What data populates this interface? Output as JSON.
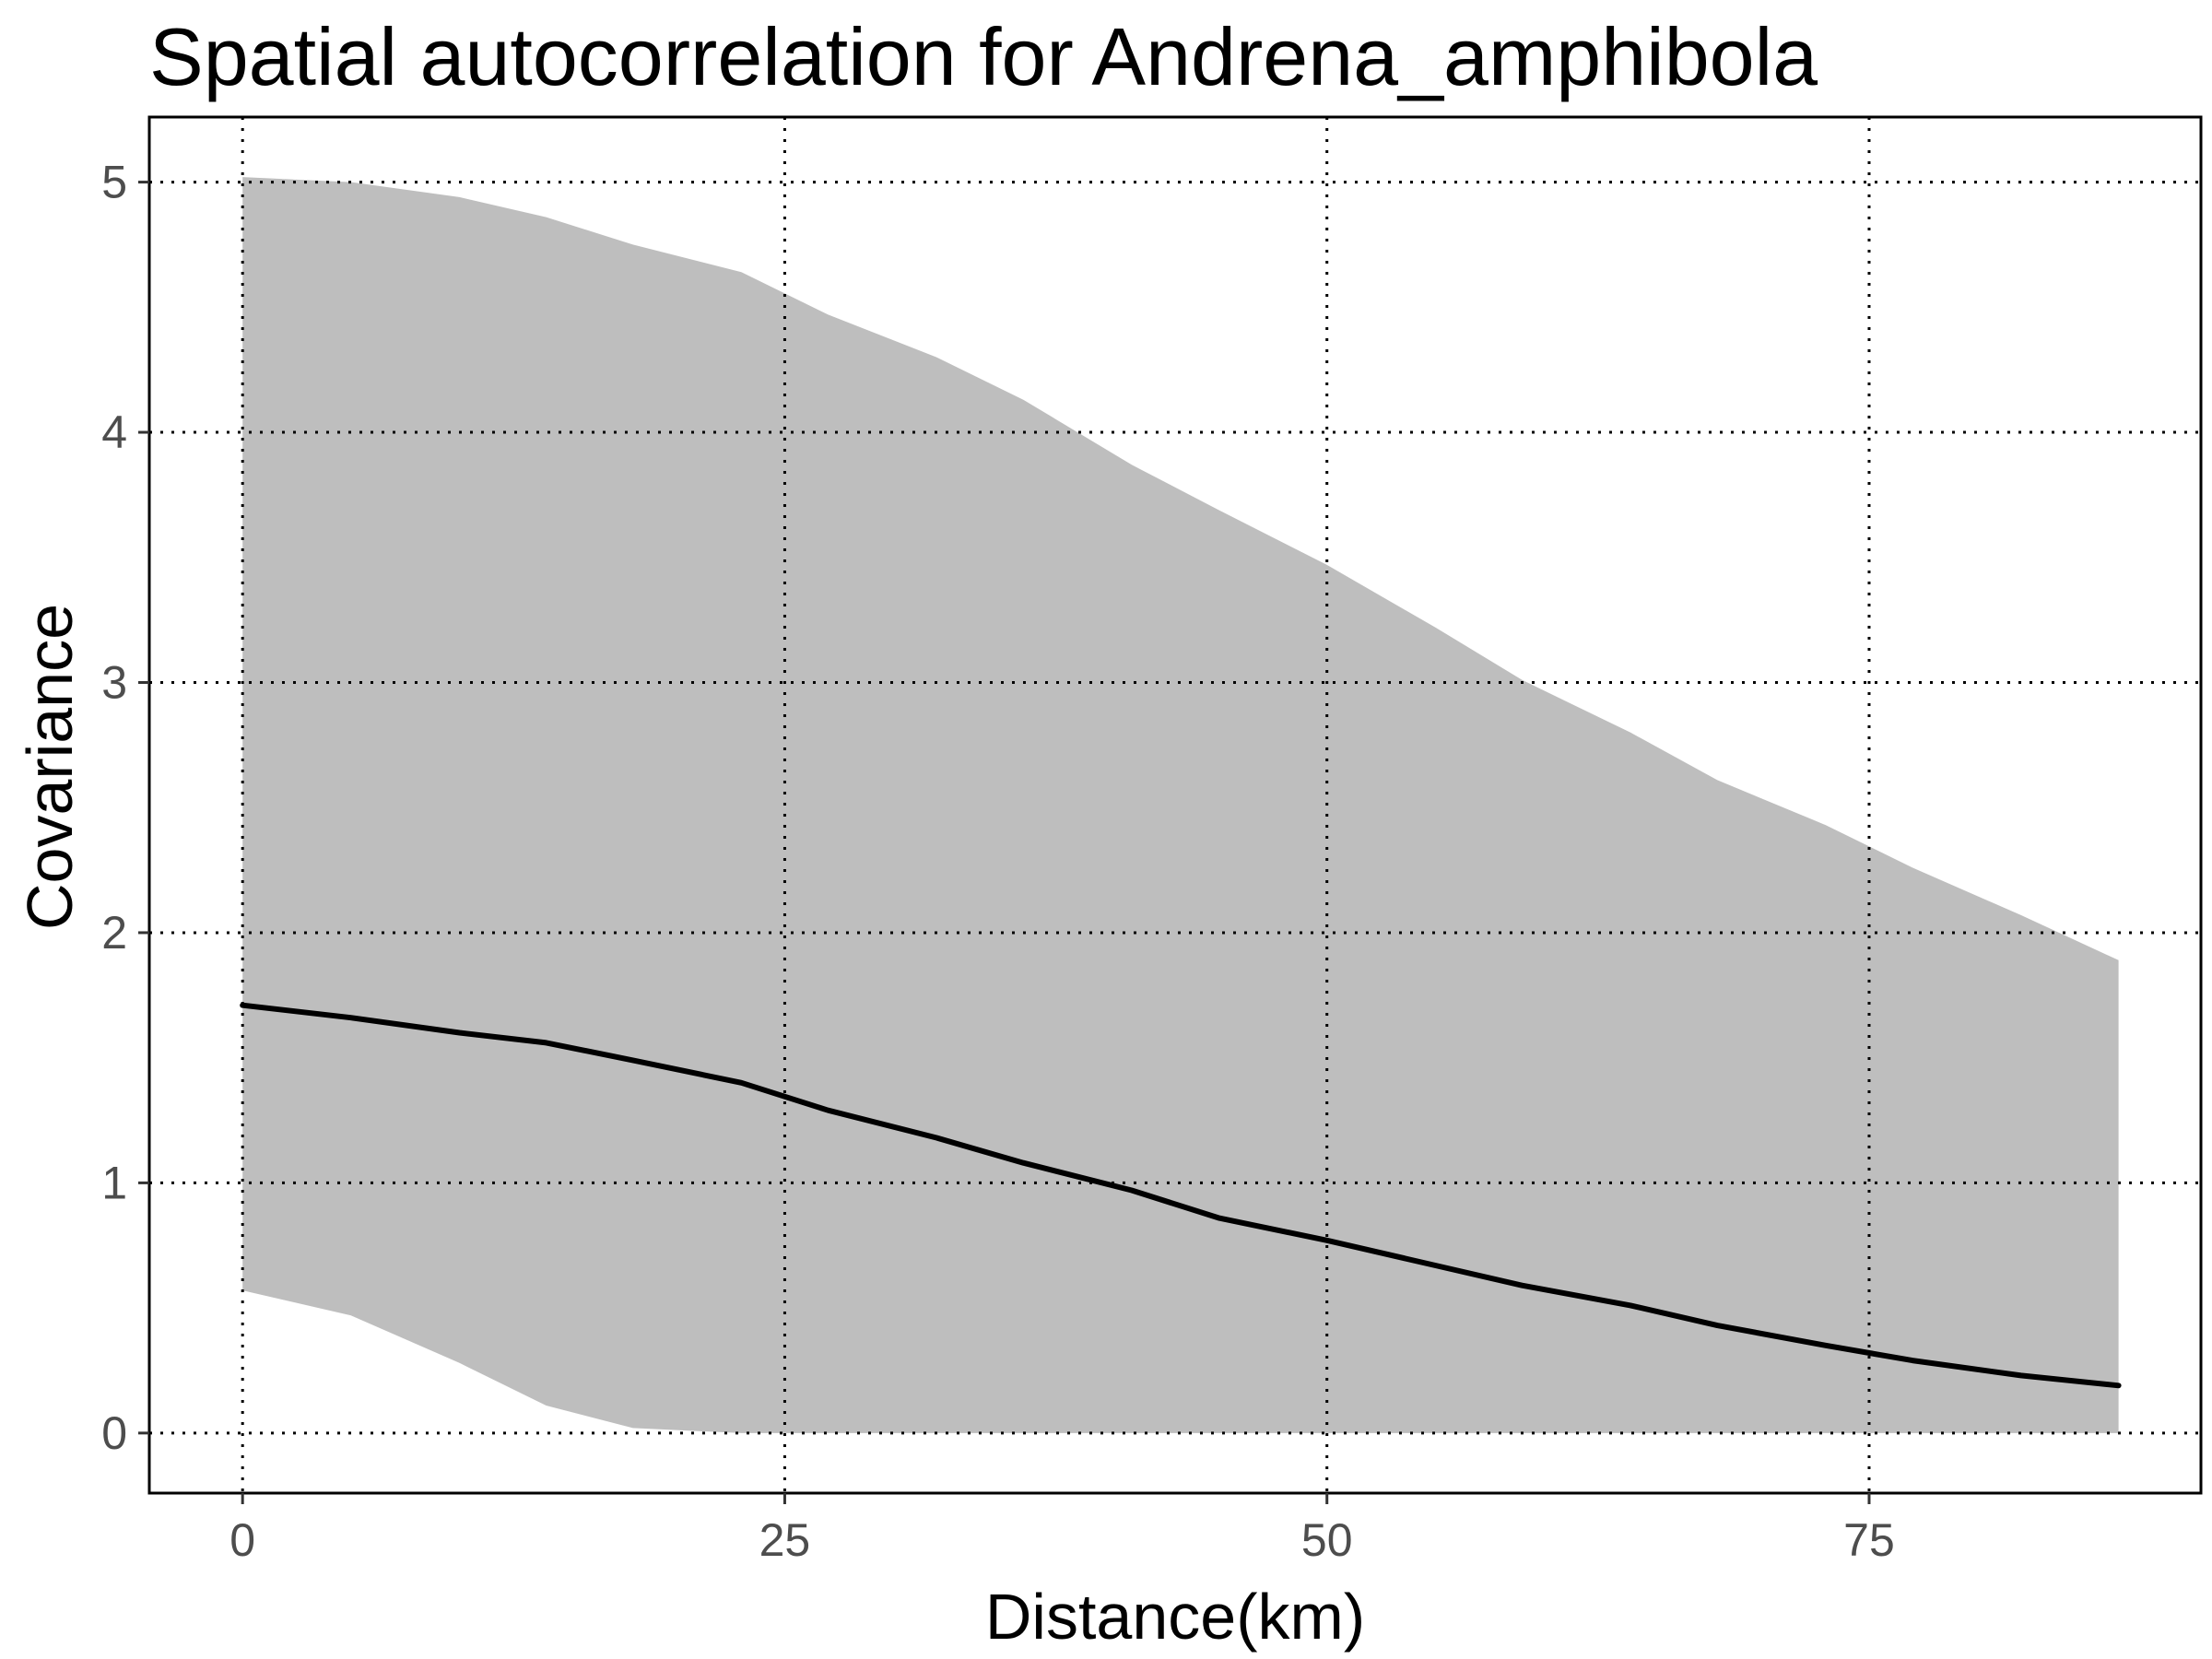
{
  "chart_data": {
    "type": "line",
    "title": "Spatial autocorrelation for Andrena_amphibola",
    "xlabel": "Distance(km)",
    "ylabel": "Covariance",
    "xlim": [
      -4.3,
      90.3
    ],
    "ylim": [
      -0.24,
      5.26
    ],
    "xticks": [
      0,
      25,
      50,
      75
    ],
    "yticks": [
      0,
      1,
      2,
      3,
      4,
      5
    ],
    "grid": true,
    "grid_style": "dotted",
    "legend": "none",
    "colors": {
      "line": "#000000",
      "ribbon": "#bebebe",
      "grid": "#000000",
      "panel_border": "#000000"
    },
    "series": [
      {
        "x": [
          0,
          5,
          10,
          14,
          18,
          23,
          27,
          32,
          36,
          41,
          45,
          50,
          55,
          59,
          64,
          68,
          73,
          77,
          82,
          86.5
        ],
        "y": [
          1.71,
          1.66,
          1.6,
          1.56,
          1.49,
          1.4,
          1.29,
          1.18,
          1.08,
          0.97,
          0.86,
          0.77,
          0.67,
          0.59,
          0.51,
          0.43,
          0.35,
          0.29,
          0.23,
          0.19
        ],
        "lower": [
          0.57,
          0.47,
          0.28,
          0.11,
          0.02,
          0,
          0,
          0,
          0,
          0,
          0,
          0,
          0,
          0,
          0,
          0,
          0,
          0,
          0,
          0
        ],
        "upper": [
          5.02,
          5.0,
          4.94,
          4.86,
          4.75,
          4.64,
          4.47,
          4.3,
          4.13,
          3.87,
          3.69,
          3.47,
          3.22,
          3.01,
          2.8,
          2.61,
          2.43,
          2.26,
          2.07,
          1.89
        ]
      }
    ]
  }
}
